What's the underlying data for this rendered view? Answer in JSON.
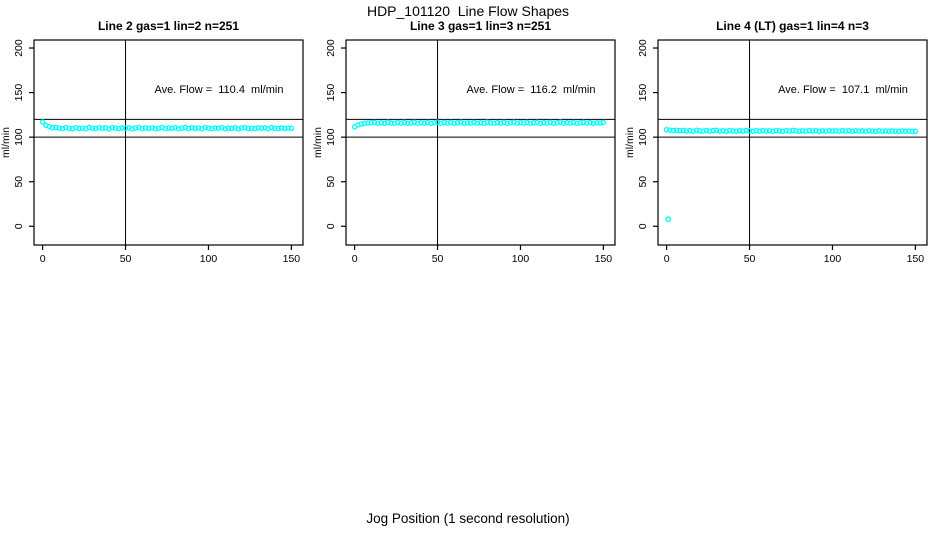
{
  "page": {
    "title": "HDP_101120  Line Flow Shapes",
    "xlabel": "Jog Position (1 second resolution)",
    "background": "#ffffff",
    "axis_color": "#000000"
  },
  "chart_data": [
    {
      "type": "scatter",
      "title": "Line 2 gas=1 lin=2 n=251",
      "annotation": "Ave. Flow =  110.4  ml/min",
      "ave_flow": 110.4,
      "n": 251,
      "ylabel": "ml/min",
      "xticks": [
        0,
        50,
        100,
        150
      ],
      "yticks": [
        0,
        50,
        100,
        150,
        200
      ],
      "xlim": [
        -5.2,
        157
      ],
      "ylim": [
        -21,
        209
      ],
      "hlines": [
        100,
        120
      ],
      "vlines": [
        50
      ],
      "grid": false,
      "marker": "open-circle",
      "marker_color": "#00FFFF",
      "x_start": 0,
      "x_step": 2,
      "values": [
        117.0,
        113.2,
        111.8,
        110.6,
        110.9,
        110.2,
        109.6,
        110.8,
        110.1,
        109.4,
        110.6,
        109.8,
        110.3,
        109.5,
        110.9,
        110.0,
        109.6,
        110.7,
        109.9,
        110.4,
        109.3,
        110.8,
        110.1,
        109.6,
        110.5,
        109.9,
        110.6,
        109.4,
        110.2,
        110.9,
        109.7,
        110.4,
        109.8,
        110.6,
        109.5,
        110.1,
        110.8,
        109.6,
        110.3,
        109.9,
        110.7,
        109.4,
        110.2,
        110.9,
        109.7,
        110.5,
        109.8,
        110.3,
        109.5,
        110.8,
        110.0,
        109.6,
        110.4,
        109.9,
        110.7,
        109.5,
        110.2,
        109.8,
        110.6,
        109.4,
        110.3,
        110.9,
        109.7,
        110.1,
        109.6,
        110.5,
        109.9,
        110.4,
        109.5,
        110.8,
        110.0,
        109.7,
        110.4,
        109.8,
        110.2,
        109.9
      ],
      "extra_points": []
    },
    {
      "type": "scatter",
      "title": "Line 3 gas=1 lin=3 n=251",
      "annotation": "Ave. Flow =  116.2  ml/min",
      "ave_flow": 116.2,
      "n": 251,
      "ylabel": "ml/min",
      "xticks": [
        0,
        50,
        100,
        150
      ],
      "yticks": [
        0,
        50,
        100,
        150,
        200
      ],
      "xlim": [
        -5.2,
        157
      ],
      "ylim": [
        -21,
        209
      ],
      "hlines": [
        100,
        120
      ],
      "vlines": [
        50
      ],
      "grid": false,
      "marker": "open-circle",
      "marker_color": "#00FFFF",
      "x_start": 0,
      "x_step": 2,
      "values": [
        111.5,
        113.6,
        114.8,
        115.5,
        115.9,
        116.3,
        116.6,
        115.7,
        116.2,
        115.5,
        116.8,
        116.0,
        115.6,
        116.4,
        115.8,
        116.7,
        115.5,
        116.1,
        116.8,
        115.6,
        116.3,
        115.9,
        116.6,
        115.5,
        116.2,
        116.9,
        115.7,
        116.4,
        115.8,
        116.5,
        115.6,
        116.2,
        116.8,
        115.5,
        116.1,
        115.9,
        116.6,
        115.7,
        116.3,
        115.5,
        116.9,
        116.0,
        115.6,
        116.4,
        115.8,
        116.7,
        115.5,
        116.2,
        116.8,
        115.6,
        116.3,
        115.9,
        116.5,
        115.7,
        116.1,
        116.8,
        115.5,
        116.4,
        115.8,
        116.6,
        115.6,
        116.2,
        116.9,
        115.7,
        116.3,
        115.9,
        116.5,
        115.6,
        116.1,
        116.7,
        115.8,
        116.4,
        115.5,
        116.2,
        116.0,
        116.5
      ],
      "extra_points": []
    },
    {
      "type": "scatter",
      "title": "Line 4 (LT) gas=1 lin=4 n=3",
      "annotation": "Ave. Flow =  107.1  ml/min",
      "ave_flow": 107.1,
      "n": 3,
      "ylabel": "ml/min",
      "xticks": [
        0,
        50,
        100,
        150
      ],
      "yticks": [
        0,
        50,
        100,
        150,
        200
      ],
      "xlim": [
        -5.2,
        157
      ],
      "ylim": [
        -21,
        209
      ],
      "hlines": [
        100,
        120
      ],
      "vlines": [
        50
      ],
      "grid": false,
      "marker": "open-circle",
      "marker_color": "#00FFFF",
      "x_start": 0,
      "x_step": 2,
      "values": [
        108.4,
        107.9,
        107.5,
        107.8,
        107.2,
        107.6,
        106.9,
        107.4,
        106.7,
        107.8,
        107.1,
        106.8,
        107.5,
        106.9,
        107.3,
        107.7,
        106.8,
        107.2,
        106.6,
        107.5,
        107.0,
        106.7,
        107.4,
        106.9,
        107.6,
        107.1,
        106.7,
        107.3,
        106.8,
        107.5,
        106.9,
        107.2,
        106.6,
        107.4,
        107.0,
        106.7,
        107.3,
        106.9,
        107.6,
        107.1,
        106.7,
        107.2,
        106.8,
        107.4,
        106.9,
        107.3,
        106.6,
        107.1,
        106.8,
        107.4,
        106.9,
        107.2,
        106.7,
        107.3,
        106.9,
        107.1,
        106.6,
        107.2,
        106.8,
        107.0,
        106.7,
        107.2,
        106.8,
        106.5,
        107.1,
        106.7,
        106.9,
        106.6,
        107.0,
        106.7,
        106.4,
        106.9,
        106.6,
        106.8,
        106.5,
        106.7
      ],
      "extra_points": [
        [
          1,
          8
        ]
      ]
    }
  ]
}
